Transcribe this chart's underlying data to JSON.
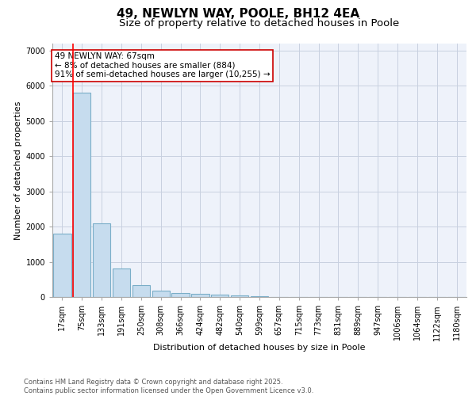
{
  "title": "49, NEWLYN WAY, POOLE, BH12 4EA",
  "subtitle": "Size of property relative to detached houses in Poole",
  "xlabel": "Distribution of detached houses by size in Poole",
  "ylabel": "Number of detached properties",
  "categories": [
    "17sqm",
    "75sqm",
    "133sqm",
    "191sqm",
    "250sqm",
    "308sqm",
    "366sqm",
    "424sqm",
    "482sqm",
    "540sqm",
    "599sqm",
    "657sqm",
    "715sqm",
    "773sqm",
    "831sqm",
    "889sqm",
    "947sqm",
    "1006sqm",
    "1064sqm",
    "1122sqm",
    "1180sqm"
  ],
  "values": [
    1800,
    5800,
    2100,
    820,
    340,
    190,
    110,
    80,
    60,
    40,
    15,
    10,
    5,
    2,
    1,
    1,
    0,
    0,
    0,
    0,
    0
  ],
  "bar_color": "#c6dcee",
  "bar_edge_color": "#7aaec8",
  "bar_linewidth": 0.8,
  "red_line_x": 1,
  "annotation_line1": "49 NEWLYN WAY: 67sqm",
  "annotation_line2": "← 8% of detached houses are smaller (884)",
  "annotation_line3": "91% of semi-detached houses are larger (10,255) →",
  "annotation_box_facecolor": "#ffffff",
  "annotation_box_edgecolor": "#cc0000",
  "ylim": [
    0,
    7200
  ],
  "yticks": [
    0,
    1000,
    2000,
    3000,
    4000,
    5000,
    6000,
    7000
  ],
  "background_color": "#eef2fa",
  "grid_color": "#c8d0e0",
  "title_fontsize": 11,
  "subtitle_fontsize": 9.5,
  "axis_label_fontsize": 8,
  "tick_fontsize": 7,
  "annotation_fontsize": 7.5,
  "footer_line1": "Contains HM Land Registry data © Crown copyright and database right 2025.",
  "footer_line2": "Contains public sector information licensed under the Open Government Licence v3.0.",
  "footer_fontsize": 6.0
}
